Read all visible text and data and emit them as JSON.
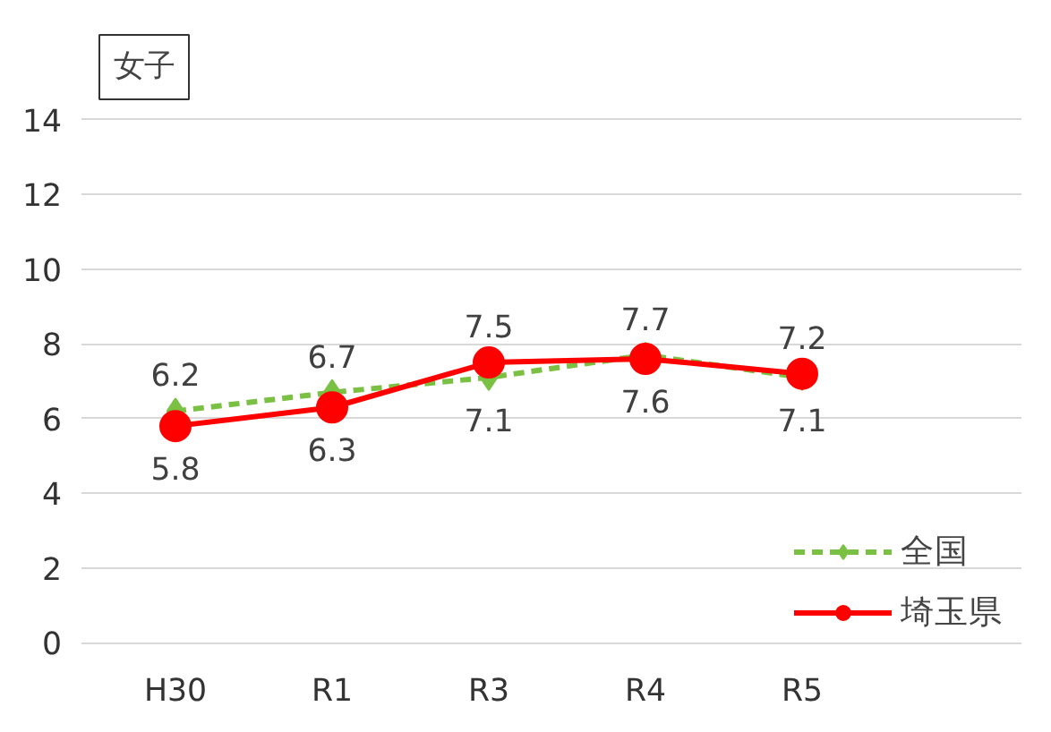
{
  "chart_data": {
    "type": "line",
    "title": "女子",
    "categories": [
      "H30",
      "R1",
      "R3",
      "R4",
      "R5"
    ],
    "series": [
      {
        "name": "全国",
        "color": "#7ac143",
        "values": [
          6.2,
          6.7,
          7.1,
          7.7,
          7.1
        ],
        "marker": "diamond",
        "line_style": "dashed"
      },
      {
        "name": "埼玉県",
        "color": "#ff0000",
        "values": [
          5.8,
          6.3,
          7.5,
          7.6,
          7.2
        ],
        "marker": "circle",
        "line_style": "solid"
      }
    ],
    "ylim": [
      0,
      14
    ],
    "yticks": [
      0,
      2,
      4,
      6,
      8,
      10,
      12,
      14
    ],
    "grid": "y",
    "legend": "bottom right",
    "data_labels": true
  }
}
